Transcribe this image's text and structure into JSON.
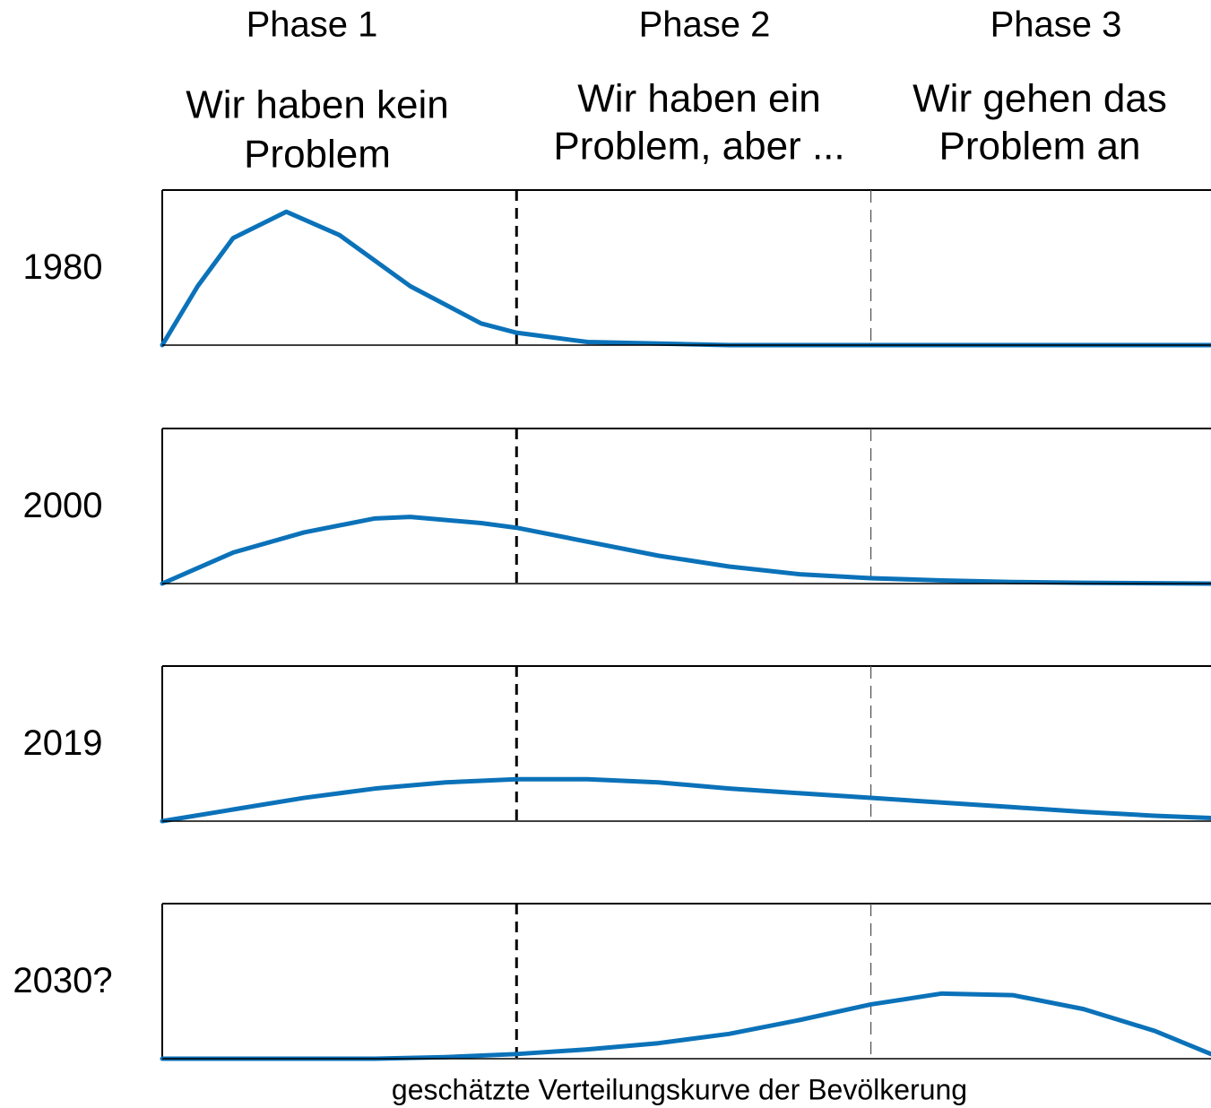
{
  "header": {
    "phases": [
      {
        "name": "Phase 1",
        "description": [
          "Wir haben kein",
          "Problem"
        ]
      },
      {
        "name": "Phase 2",
        "description": [
          "Wir haben ein",
          "Problem, aber ..."
        ]
      },
      {
        "name": "Phase 3",
        "description": [
          "Wir gehen das",
          "Problem an"
        ]
      }
    ]
  },
  "caption": "geschätzte Verteilungskurve der Bevölkerung",
  "chart_data": [
    {
      "type": "line",
      "title": "1980",
      "color": "#0b72b9",
      "xlim": [
        0,
        2.96
      ],
      "ylim": [
        0,
        1
      ],
      "vlines": [
        1,
        2
      ],
      "x": [
        0,
        0.1,
        0.2,
        0.35,
        0.5,
        0.7,
        0.9,
        1.0,
        1.2,
        1.4,
        1.6,
        2.0,
        2.4,
        2.96
      ],
      "values": [
        0,
        0.38,
        0.69,
        0.86,
        0.71,
        0.38,
        0.14,
        0.08,
        0.02,
        0.01,
        0,
        0,
        0,
        0
      ]
    },
    {
      "type": "line",
      "title": "2000",
      "color": "#0b72b9",
      "xlim": [
        0,
        2.96
      ],
      "ylim": [
        0,
        1
      ],
      "vlines": [
        1,
        2
      ],
      "x": [
        0,
        0.2,
        0.4,
        0.6,
        0.7,
        0.9,
        1.0,
        1.2,
        1.4,
        1.6,
        1.8,
        2.0,
        2.2,
        2.4,
        2.6,
        2.96
      ],
      "values": [
        0,
        0.2,
        0.33,
        0.42,
        0.43,
        0.39,
        0.36,
        0.27,
        0.18,
        0.11,
        0.06,
        0.035,
        0.02,
        0.01,
        0.005,
        0
      ]
    },
    {
      "type": "line",
      "title": "2019",
      "color": "#0b72b9",
      "xlim": [
        0,
        2.96
      ],
      "ylim": [
        0,
        1
      ],
      "vlines": [
        1,
        2
      ],
      "x": [
        0,
        0.2,
        0.4,
        0.6,
        0.8,
        1.0,
        1.2,
        1.4,
        1.6,
        1.8,
        2.0,
        2.2,
        2.4,
        2.6,
        2.8,
        2.96
      ],
      "values": [
        0,
        0.075,
        0.15,
        0.21,
        0.25,
        0.27,
        0.27,
        0.25,
        0.21,
        0.18,
        0.15,
        0.12,
        0.09,
        0.06,
        0.035,
        0.02
      ]
    },
    {
      "type": "line",
      "title": "2030?",
      "color": "#0b72b9",
      "xlim": [
        0,
        2.96
      ],
      "ylim": [
        0,
        1
      ],
      "vlines": [
        1,
        2
      ],
      "x": [
        0,
        0.6,
        0.8,
        1.0,
        1.2,
        1.4,
        1.6,
        1.8,
        2.0,
        2.2,
        2.4,
        2.6,
        2.8,
        2.96
      ],
      "values": [
        0,
        0,
        0.01,
        0.03,
        0.06,
        0.1,
        0.16,
        0.25,
        0.35,
        0.42,
        0.41,
        0.32,
        0.18,
        0.03
      ]
    }
  ]
}
